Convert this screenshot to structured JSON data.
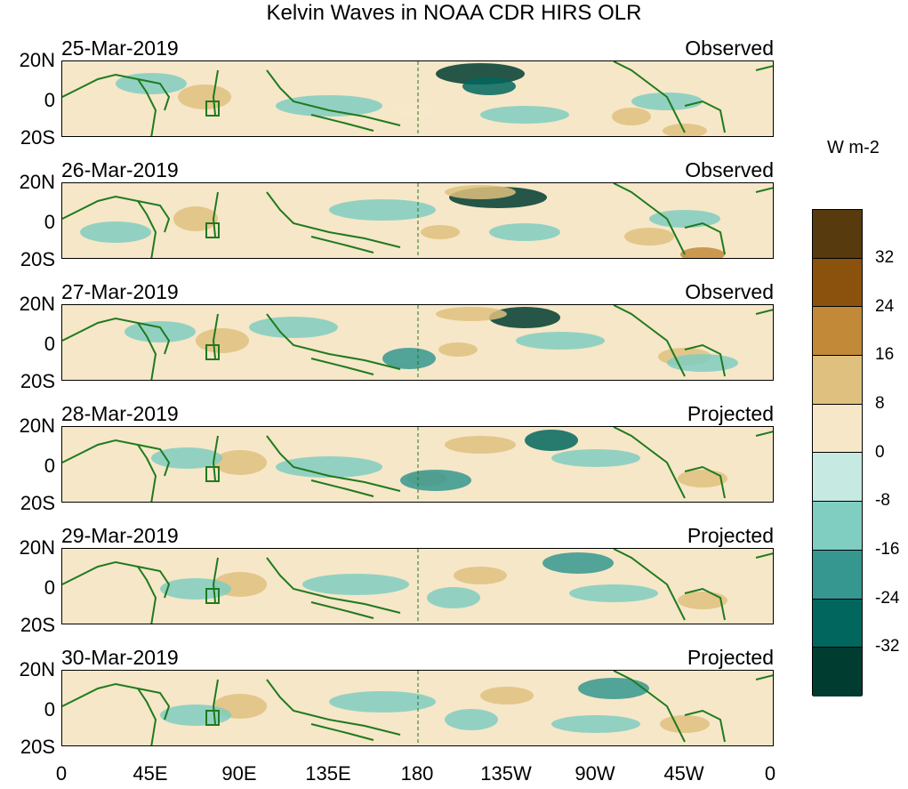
{
  "title": "Kelvin Waves in NOAA CDR HIRS OLR",
  "panels": [
    {
      "date": "25-Mar-2019",
      "status": "Observed"
    },
    {
      "date": "26-Mar-2019",
      "status": "Observed"
    },
    {
      "date": "27-Mar-2019",
      "status": "Observed"
    },
    {
      "date": "28-Mar-2019",
      "status": "Projected"
    },
    {
      "date": "29-Mar-2019",
      "status": "Projected"
    },
    {
      "date": "30-Mar-2019",
      "status": "Projected"
    }
  ],
  "lat_labels": {
    "north": "20N",
    "eq": "0",
    "south": "20S"
  },
  "lon_labels": [
    "0",
    "45E",
    "90E",
    "135E",
    "180",
    "135W",
    "90W",
    "45W",
    "0"
  ],
  "colorbar": {
    "title": "W m-2",
    "colors": [
      "#573a0d",
      "#8b520e",
      "#c28a38",
      "#dfc07e",
      "#f6e7c8",
      "#c6e9e2",
      "#80cdc1",
      "#35978f",
      "#01665e",
      "#003c30"
    ],
    "ticks": [
      "32",
      "24",
      "16",
      "8",
      "0",
      "-8",
      "-16",
      "-24",
      "-32"
    ]
  },
  "colors": {
    "coast": "#1f7a1f",
    "background": "#f6e7c8"
  }
}
